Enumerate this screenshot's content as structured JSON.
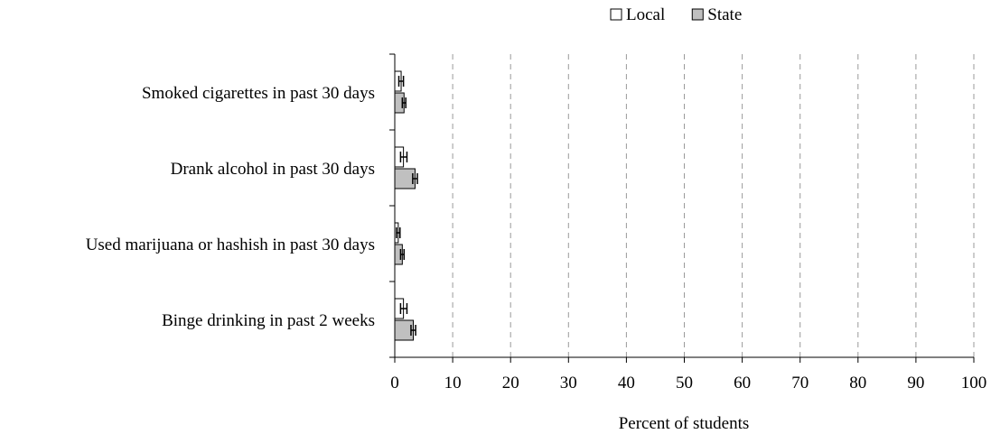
{
  "chart_data": {
    "type": "bar",
    "orientation": "horizontal",
    "categories": [
      "Smoked cigarettes in past 30 days",
      "Drank alcohol in past 30 days",
      "Used marijuana or hashish in past 30 days",
      "Binge drinking in past 2 weeks"
    ],
    "series": [
      {
        "name": "Local",
        "values": [
          1.1,
          1.5,
          0.6,
          1.5
        ],
        "error_low": [
          0.7,
          1.0,
          0.3,
          1.0
        ],
        "error_high": [
          1.5,
          2.1,
          0.9,
          2.1
        ],
        "color": "#ffffff"
      },
      {
        "name": "State",
        "values": [
          1.6,
          3.5,
          1.3,
          3.2
        ],
        "error_low": [
          1.3,
          3.1,
          1.0,
          2.8
        ],
        "error_high": [
          1.9,
          3.9,
          1.6,
          3.6
        ],
        "color": "#c0c0c0"
      }
    ],
    "xlabel": "Percent of students",
    "ylabel": "",
    "xlim": [
      0,
      100
    ],
    "ticks": [
      "0",
      "10",
      "20",
      "30",
      "40",
      "50",
      "60",
      "70",
      "80",
      "90",
      "100"
    ],
    "grid": "vertical dashed",
    "legend": "top-center"
  }
}
